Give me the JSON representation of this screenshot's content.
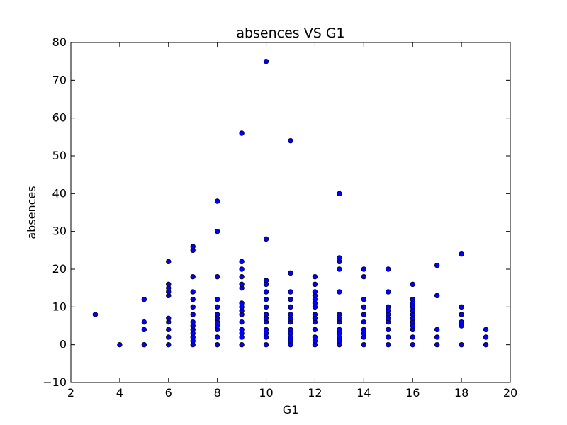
{
  "colors": {
    "point_fill": "#0000ff",
    "point_stroke": "#000000",
    "axes": "#000000",
    "background": "#ffffff"
  },
  "chart_data": {
    "type": "scatter",
    "title": "absences VS G1",
    "xlabel": "G1",
    "ylabel": "absences",
    "xlim": [
      2,
      20
    ],
    "ylim": [
      -10,
      80
    ],
    "xticks": [
      2,
      4,
      6,
      8,
      10,
      12,
      14,
      16,
      18,
      20
    ],
    "yticks": [
      -10,
      0,
      10,
      20,
      30,
      40,
      50,
      60,
      70,
      80
    ],
    "grid": false,
    "legend": "none",
    "points": [
      [
        3,
        8
      ],
      [
        4,
        0
      ],
      [
        5,
        0
      ],
      [
        5,
        4
      ],
      [
        5,
        6
      ],
      [
        5,
        12
      ],
      [
        6,
        0
      ],
      [
        6,
        2
      ],
      [
        6,
        4
      ],
      [
        6,
        6
      ],
      [
        6,
        7
      ],
      [
        6,
        13
      ],
      [
        6,
        14
      ],
      [
        6,
        15
      ],
      [
        6,
        16
      ],
      [
        6,
        22
      ],
      [
        7,
        0
      ],
      [
        7,
        1
      ],
      [
        7,
        2
      ],
      [
        7,
        3
      ],
      [
        7,
        4
      ],
      [
        7,
        5
      ],
      [
        7,
        6
      ],
      [
        7,
        8
      ],
      [
        7,
        10
      ],
      [
        7,
        12
      ],
      [
        7,
        14
      ],
      [
        7,
        18
      ],
      [
        7,
        25
      ],
      [
        7,
        26
      ],
      [
        8,
        0
      ],
      [
        8,
        2
      ],
      [
        8,
        4
      ],
      [
        8,
        5
      ],
      [
        8,
        6
      ],
      [
        8,
        7
      ],
      [
        8,
        8
      ],
      [
        8,
        10
      ],
      [
        8,
        12
      ],
      [
        8,
        18
      ],
      [
        8,
        30
      ],
      [
        8,
        38
      ],
      [
        9,
        0
      ],
      [
        9,
        2
      ],
      [
        9,
        3
      ],
      [
        9,
        4
      ],
      [
        9,
        6
      ],
      [
        9,
        8
      ],
      [
        9,
        9
      ],
      [
        9,
        10
      ],
      [
        9,
        11
      ],
      [
        9,
        15
      ],
      [
        9,
        16
      ],
      [
        9,
        18
      ],
      [
        9,
        20
      ],
      [
        9,
        22
      ],
      [
        9,
        56
      ],
      [
        10,
        0
      ],
      [
        10,
        2
      ],
      [
        10,
        3
      ],
      [
        10,
        4
      ],
      [
        10,
        6
      ],
      [
        10,
        7
      ],
      [
        10,
        8
      ],
      [
        10,
        10
      ],
      [
        10,
        12
      ],
      [
        10,
        14
      ],
      [
        10,
        16
      ],
      [
        10,
        17
      ],
      [
        10,
        28
      ],
      [
        10,
        75
      ],
      [
        11,
        0
      ],
      [
        11,
        1
      ],
      [
        11,
        2
      ],
      [
        11,
        3
      ],
      [
        11,
        4
      ],
      [
        11,
        6
      ],
      [
        11,
        7
      ],
      [
        11,
        8
      ],
      [
        11,
        10
      ],
      [
        11,
        12
      ],
      [
        11,
        14
      ],
      [
        11,
        19
      ],
      [
        11,
        54
      ],
      [
        12,
        0
      ],
      [
        12,
        1
      ],
      [
        12,
        2
      ],
      [
        12,
        4
      ],
      [
        12,
        6
      ],
      [
        12,
        7
      ],
      [
        12,
        8
      ],
      [
        12,
        10
      ],
      [
        12,
        11
      ],
      [
        12,
        12
      ],
      [
        12,
        13
      ],
      [
        12,
        14
      ],
      [
        12,
        16
      ],
      [
        12,
        18
      ],
      [
        13,
        0
      ],
      [
        13,
        1
      ],
      [
        13,
        2
      ],
      [
        13,
        3
      ],
      [
        13,
        4
      ],
      [
        13,
        6
      ],
      [
        13,
        7
      ],
      [
        13,
        8
      ],
      [
        13,
        14
      ],
      [
        13,
        20
      ],
      [
        13,
        22
      ],
      [
        13,
        23
      ],
      [
        13,
        40
      ],
      [
        14,
        0
      ],
      [
        14,
        2
      ],
      [
        14,
        3
      ],
      [
        14,
        4
      ],
      [
        14,
        6
      ],
      [
        14,
        8
      ],
      [
        14,
        10
      ],
      [
        14,
        12
      ],
      [
        14,
        18
      ],
      [
        14,
        20
      ],
      [
        15,
        0
      ],
      [
        15,
        2
      ],
      [
        15,
        4
      ],
      [
        15,
        6
      ],
      [
        15,
        7
      ],
      [
        15,
        8
      ],
      [
        15,
        9
      ],
      [
        15,
        10
      ],
      [
        15,
        14
      ],
      [
        15,
        20
      ],
      [
        16,
        0
      ],
      [
        16,
        2
      ],
      [
        16,
        4
      ],
      [
        16,
        5
      ],
      [
        16,
        6
      ],
      [
        16,
        7
      ],
      [
        16,
        8
      ],
      [
        16,
        9
      ],
      [
        16,
        10
      ],
      [
        16,
        11
      ],
      [
        16,
        12
      ],
      [
        16,
        16
      ],
      [
        17,
        0
      ],
      [
        17,
        2
      ],
      [
        17,
        4
      ],
      [
        17,
        13
      ],
      [
        17,
        21
      ],
      [
        18,
        0
      ],
      [
        18,
        5
      ],
      [
        18,
        6
      ],
      [
        18,
        8
      ],
      [
        18,
        10
      ],
      [
        18,
        24
      ],
      [
        19,
        0
      ],
      [
        19,
        2
      ],
      [
        19,
        4
      ]
    ]
  }
}
